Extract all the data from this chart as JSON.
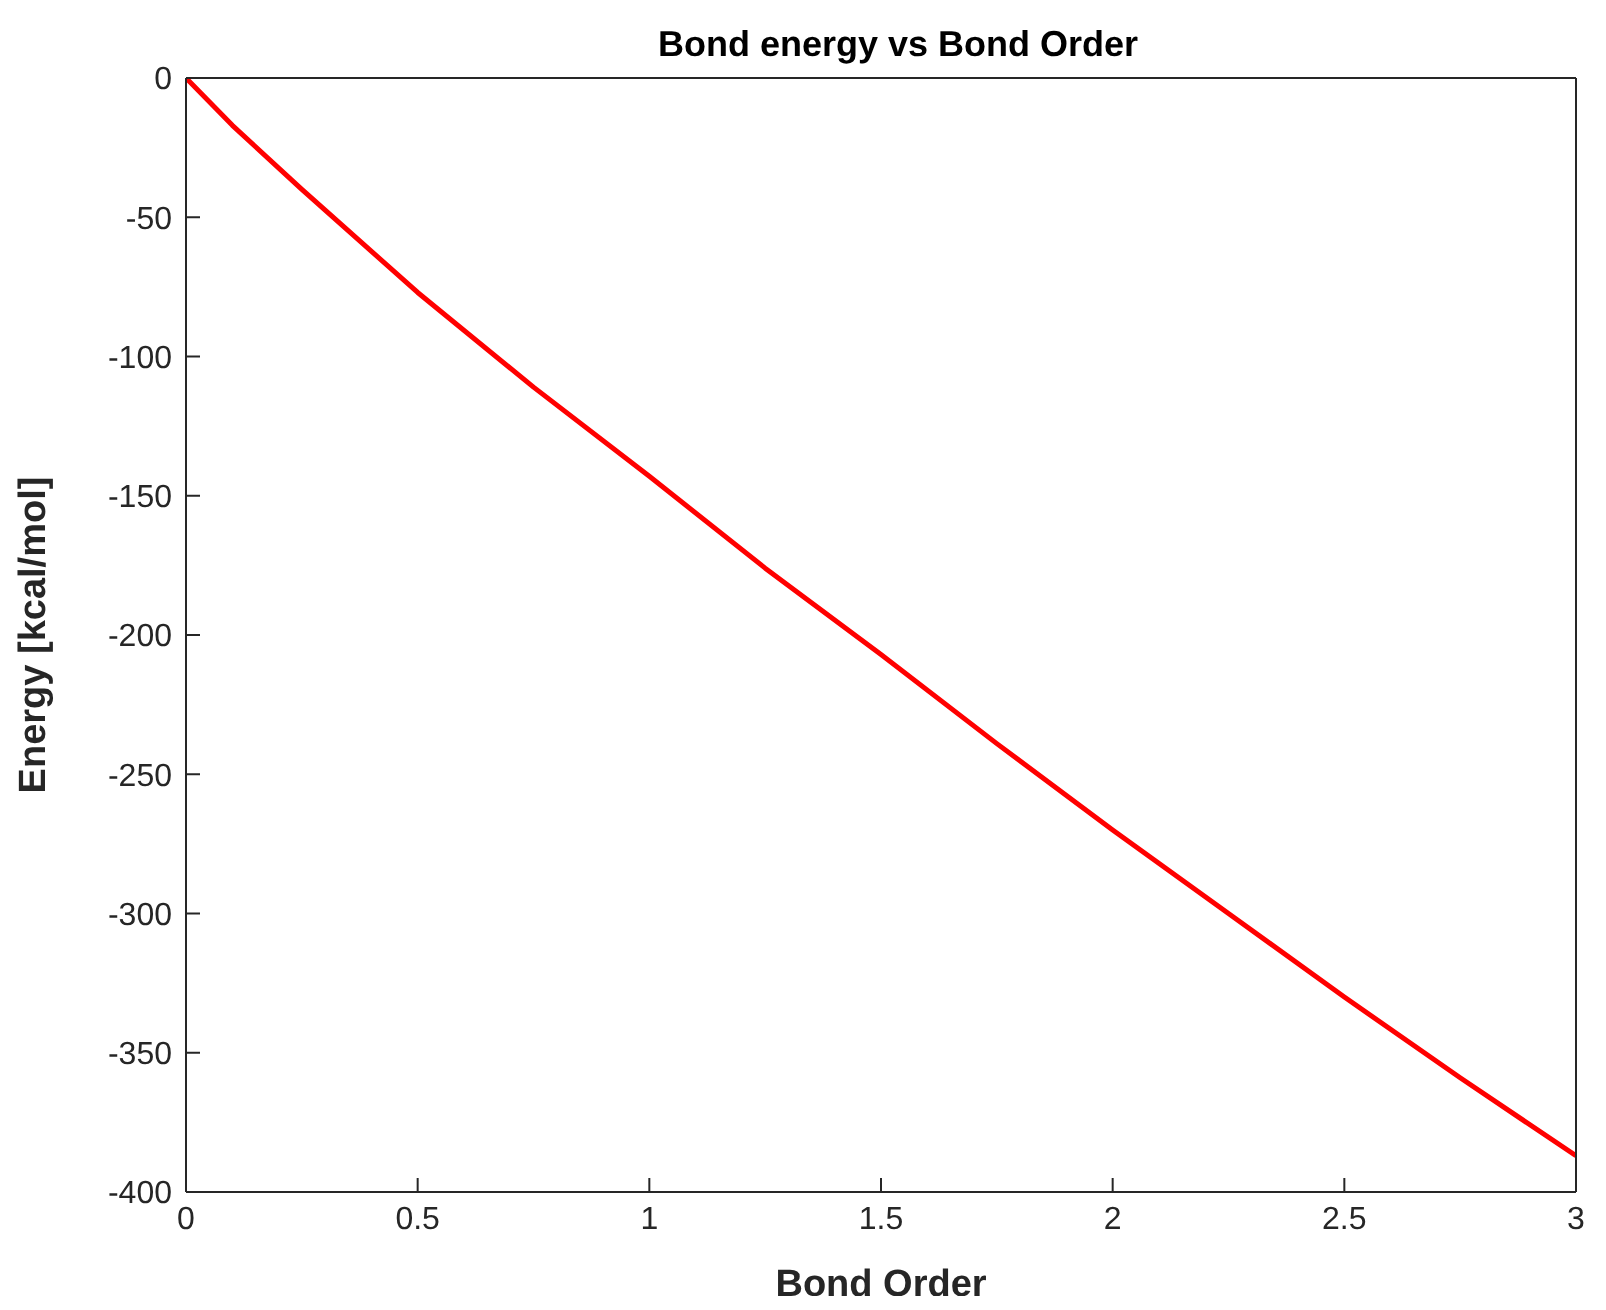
{
  "chart_data": {
    "type": "line",
    "title": "Bond energy vs Bond Order",
    "xlabel": "Bond Order",
    "ylabel": "Energy [kcal/mol]",
    "x": [
      0,
      0.1,
      0.25,
      0.5,
      0.75,
      1,
      1.25,
      1.5,
      1.75,
      2,
      2.25,
      2.5,
      2.75,
      3
    ],
    "series": [
      {
        "color": "#ff0000",
        "values": [
          0,
          -17,
          -40,
          -77,
          -111,
          -143,
          -176,
          -207,
          -239,
          -270,
          -300,
          -330,
          -359,
          -387
        ]
      }
    ],
    "xlim": [
      0,
      3
    ],
    "xticks": [
      0,
      0.5,
      1,
      1.5,
      2,
      2.5,
      3
    ],
    "ylim": [
      -400,
      0
    ],
    "yticks": [
      -400,
      -350,
      -300,
      -250,
      -200,
      -150,
      -100,
      -50,
      0
    ],
    "grid": false,
    "legend": false,
    "marker": "none",
    "line_style": "solid"
  }
}
